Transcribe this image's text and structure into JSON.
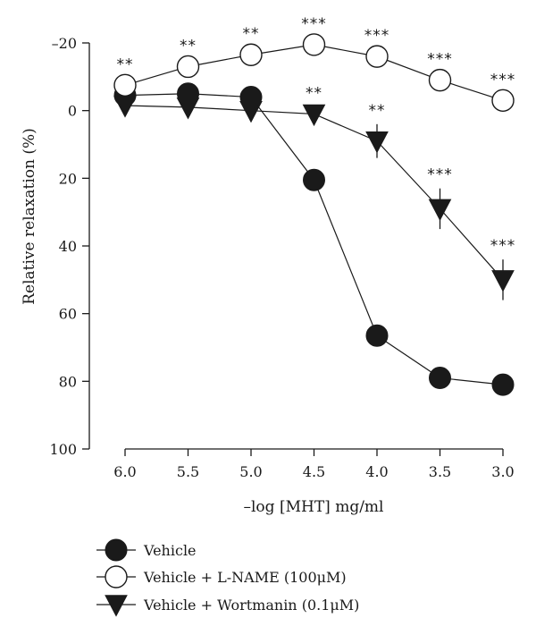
{
  "chart_data": {
    "type": "line",
    "title": "",
    "xlabel": "–log [MHT] mg/ml",
    "ylabel": "Relative relaxation (%)",
    "x": [
      6.0,
      5.5,
      5.0,
      4.5,
      4.0,
      3.5,
      3.0
    ],
    "x_tick_labels": [
      "6.0",
      "5.5",
      "5.0",
      "4.5",
      "4.0",
      "3.5",
      "3.0"
    ],
    "y_ticks": [
      -20,
      0,
      20,
      40,
      60,
      80,
      100
    ],
    "y_tick_labels": [
      "–20",
      "0",
      "20",
      "40",
      "60",
      "80",
      "100"
    ],
    "ylim": [
      -20,
      100
    ],
    "y_inverted": true,
    "x_reversed": true,
    "grid": false,
    "legend_position": "bottom-left",
    "series": [
      {
        "name": "Vehicle",
        "marker": "filled-circle",
        "values": [
          -4.5,
          -5,
          -4,
          20.5,
          66.5,
          79,
          81
        ],
        "errors": [
          0,
          0,
          0,
          0,
          0,
          0,
          0
        ]
      },
      {
        "name": "Vehicle + L-NAME (100μM)",
        "marker": "open-circle",
        "values": [
          -7.5,
          -13,
          -16.5,
          -19.5,
          -16,
          -9,
          -3
        ],
        "errors": [
          0,
          0,
          0,
          0,
          0,
          0,
          0
        ],
        "significance": [
          "**",
          "**",
          "**",
          "***",
          "***",
          "***",
          "***"
        ]
      },
      {
        "name": "Vehicle + Wortmanin (0.1μM)",
        "marker": "filled-triangle-down",
        "values": [
          -1.5,
          -1,
          0,
          1,
          9,
          29,
          50
        ],
        "errors": [
          0,
          0,
          0,
          2,
          5,
          6,
          6
        ],
        "significance": [
          "",
          "",
          "",
          "**",
          "**",
          "***",
          "***"
        ]
      }
    ]
  }
}
